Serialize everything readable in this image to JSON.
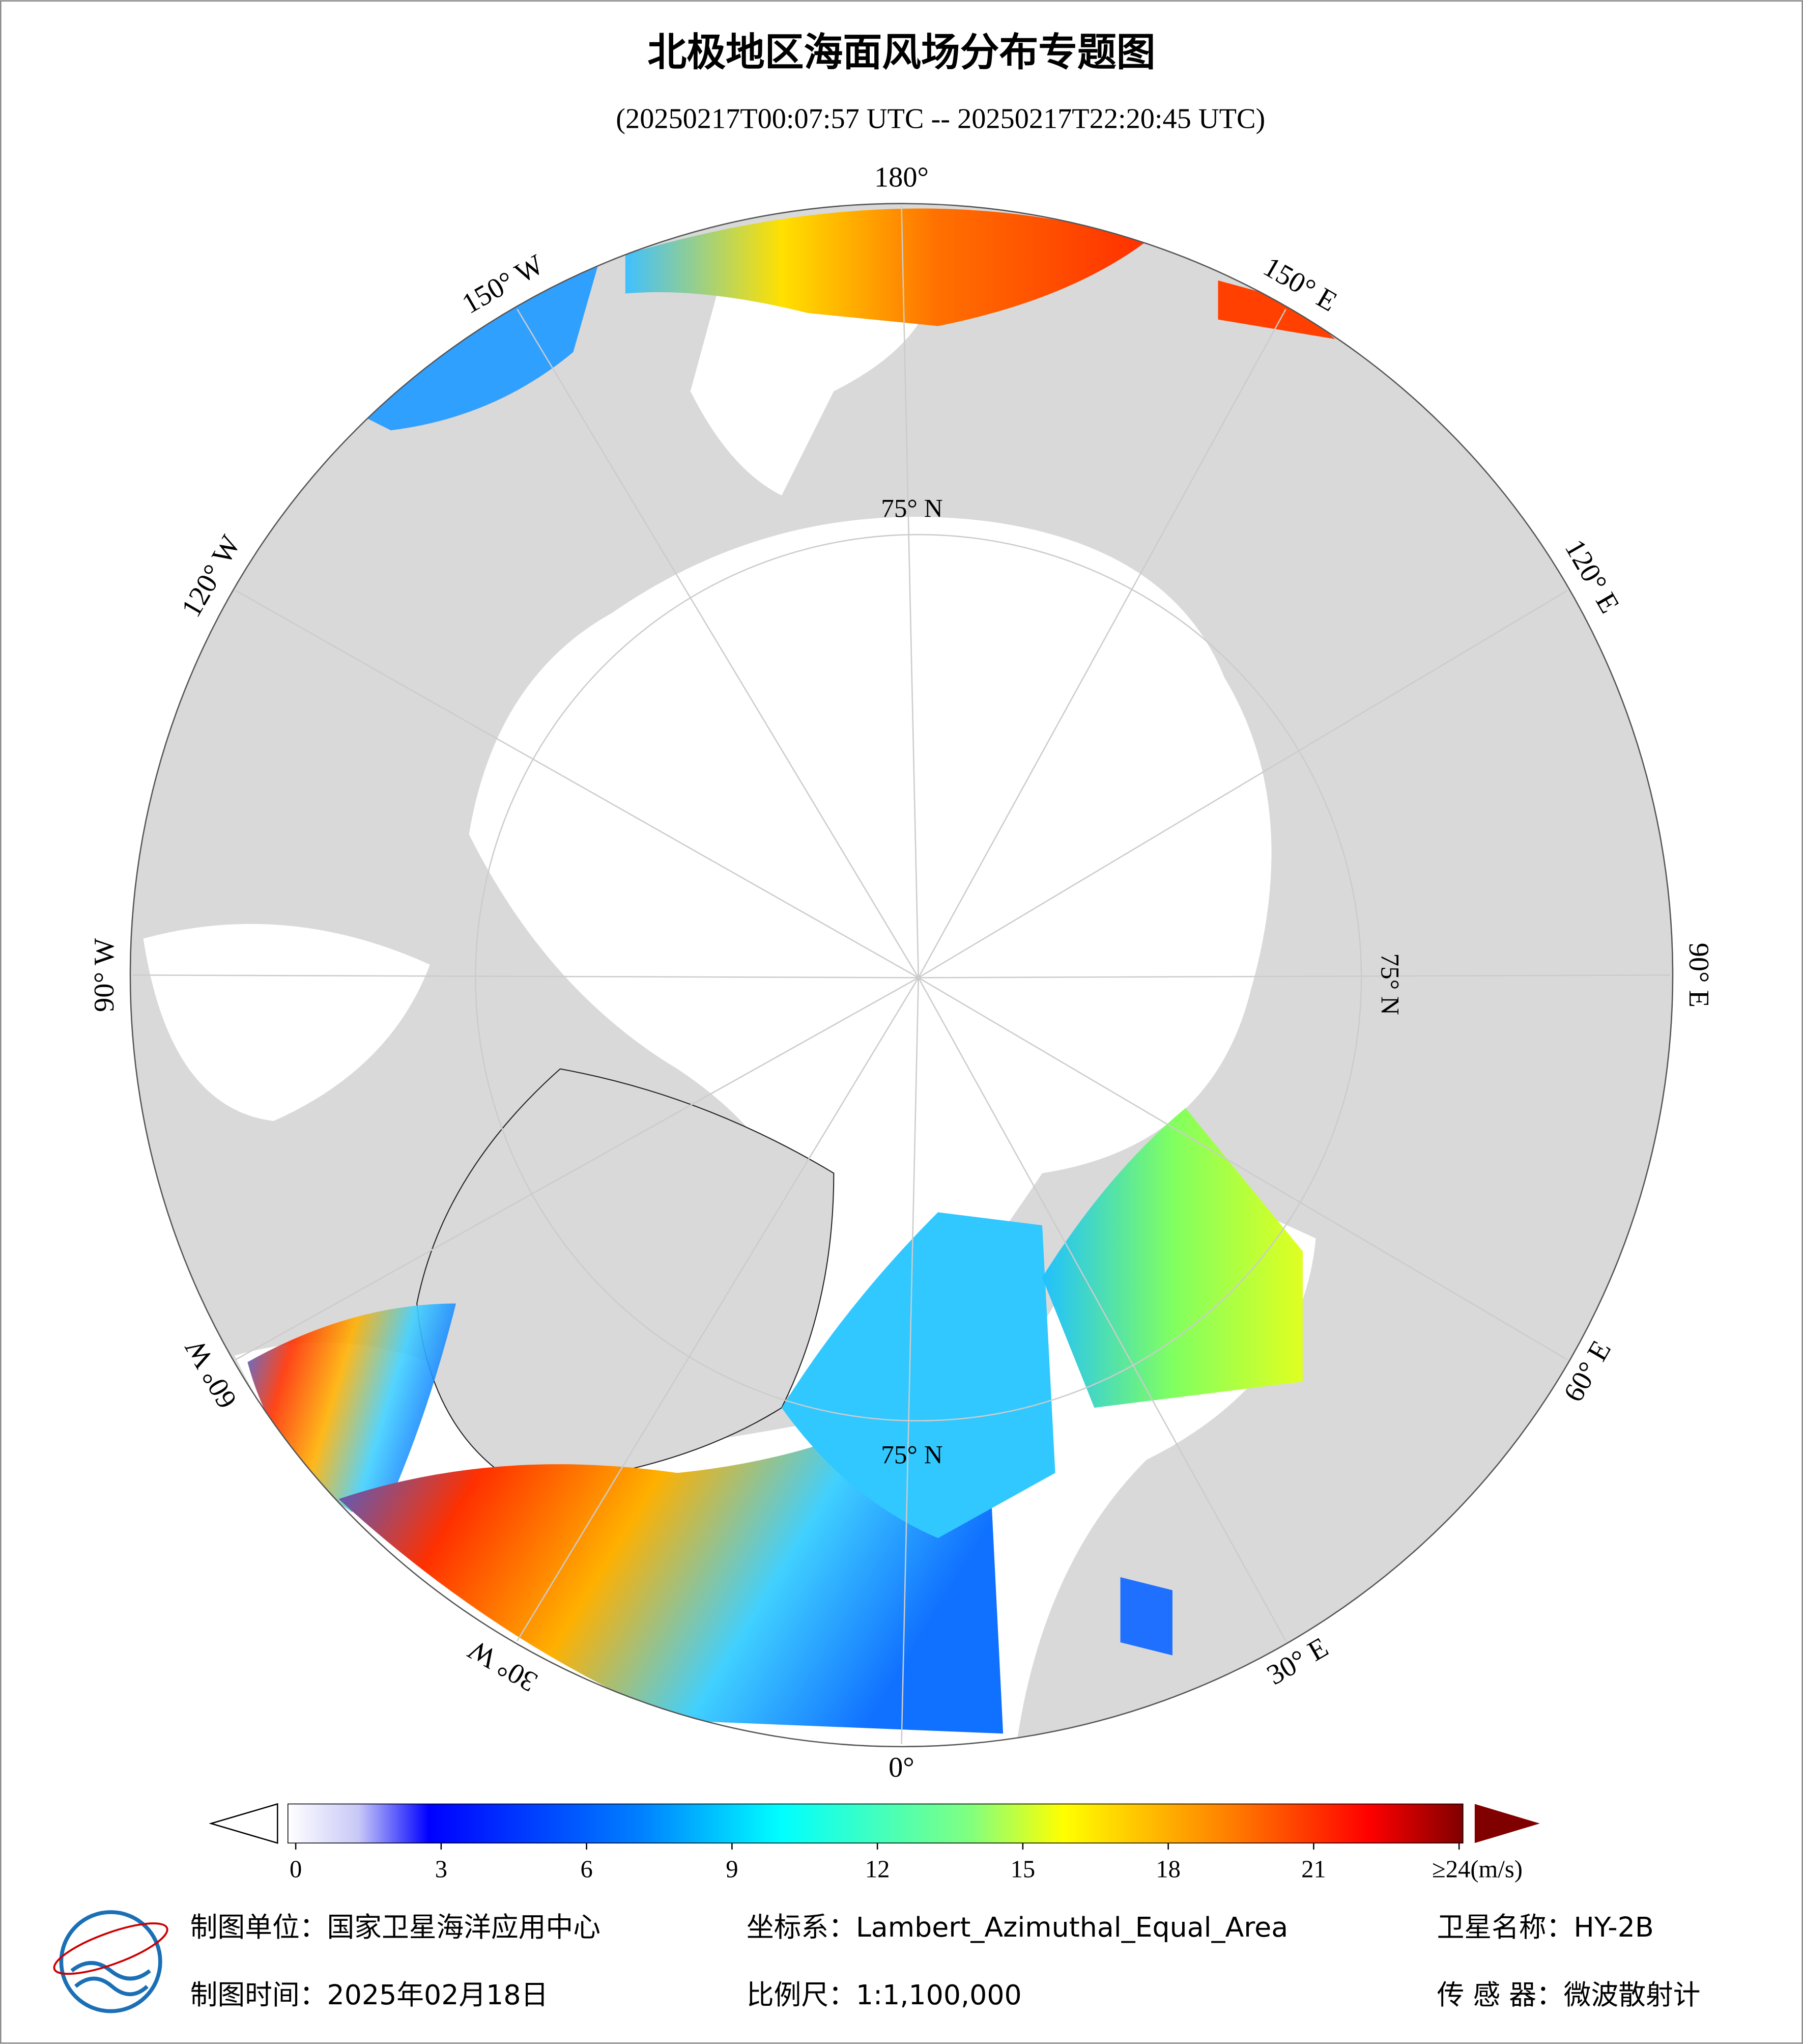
{
  "title": "北极地区海面风场分布专题图",
  "subtitle": "(20250217T00:07:57 UTC -- 20250217T22:20:45 UTC)",
  "map": {
    "longitude_labels": [
      "180°",
      "150° E",
      "120° E",
      "90° E",
      "60° E",
      "30° E",
      "0°",
      "30° W",
      "60° W",
      "90° W",
      "120° W",
      "150° W"
    ],
    "latitude_label": "75° N"
  },
  "colorbar": {
    "min": 0,
    "max": 24,
    "ticks": [
      0,
      3,
      6,
      9,
      12,
      15,
      18,
      21,
      {
        "value": 24,
        "label": "≥24(m/s)"
      }
    ]
  },
  "footer": {
    "unit": "制图单位：国家卫星海洋应用中心",
    "date": "制图时间：2025年02月18日",
    "crs": "坐标系：Lambert_Azimuthal_Equal_Area",
    "scale": "比例尺：1:1,100,000",
    "satellite": "卫星名称：HY-2B",
    "sensor": "传 感 器：微波散射计"
  }
}
